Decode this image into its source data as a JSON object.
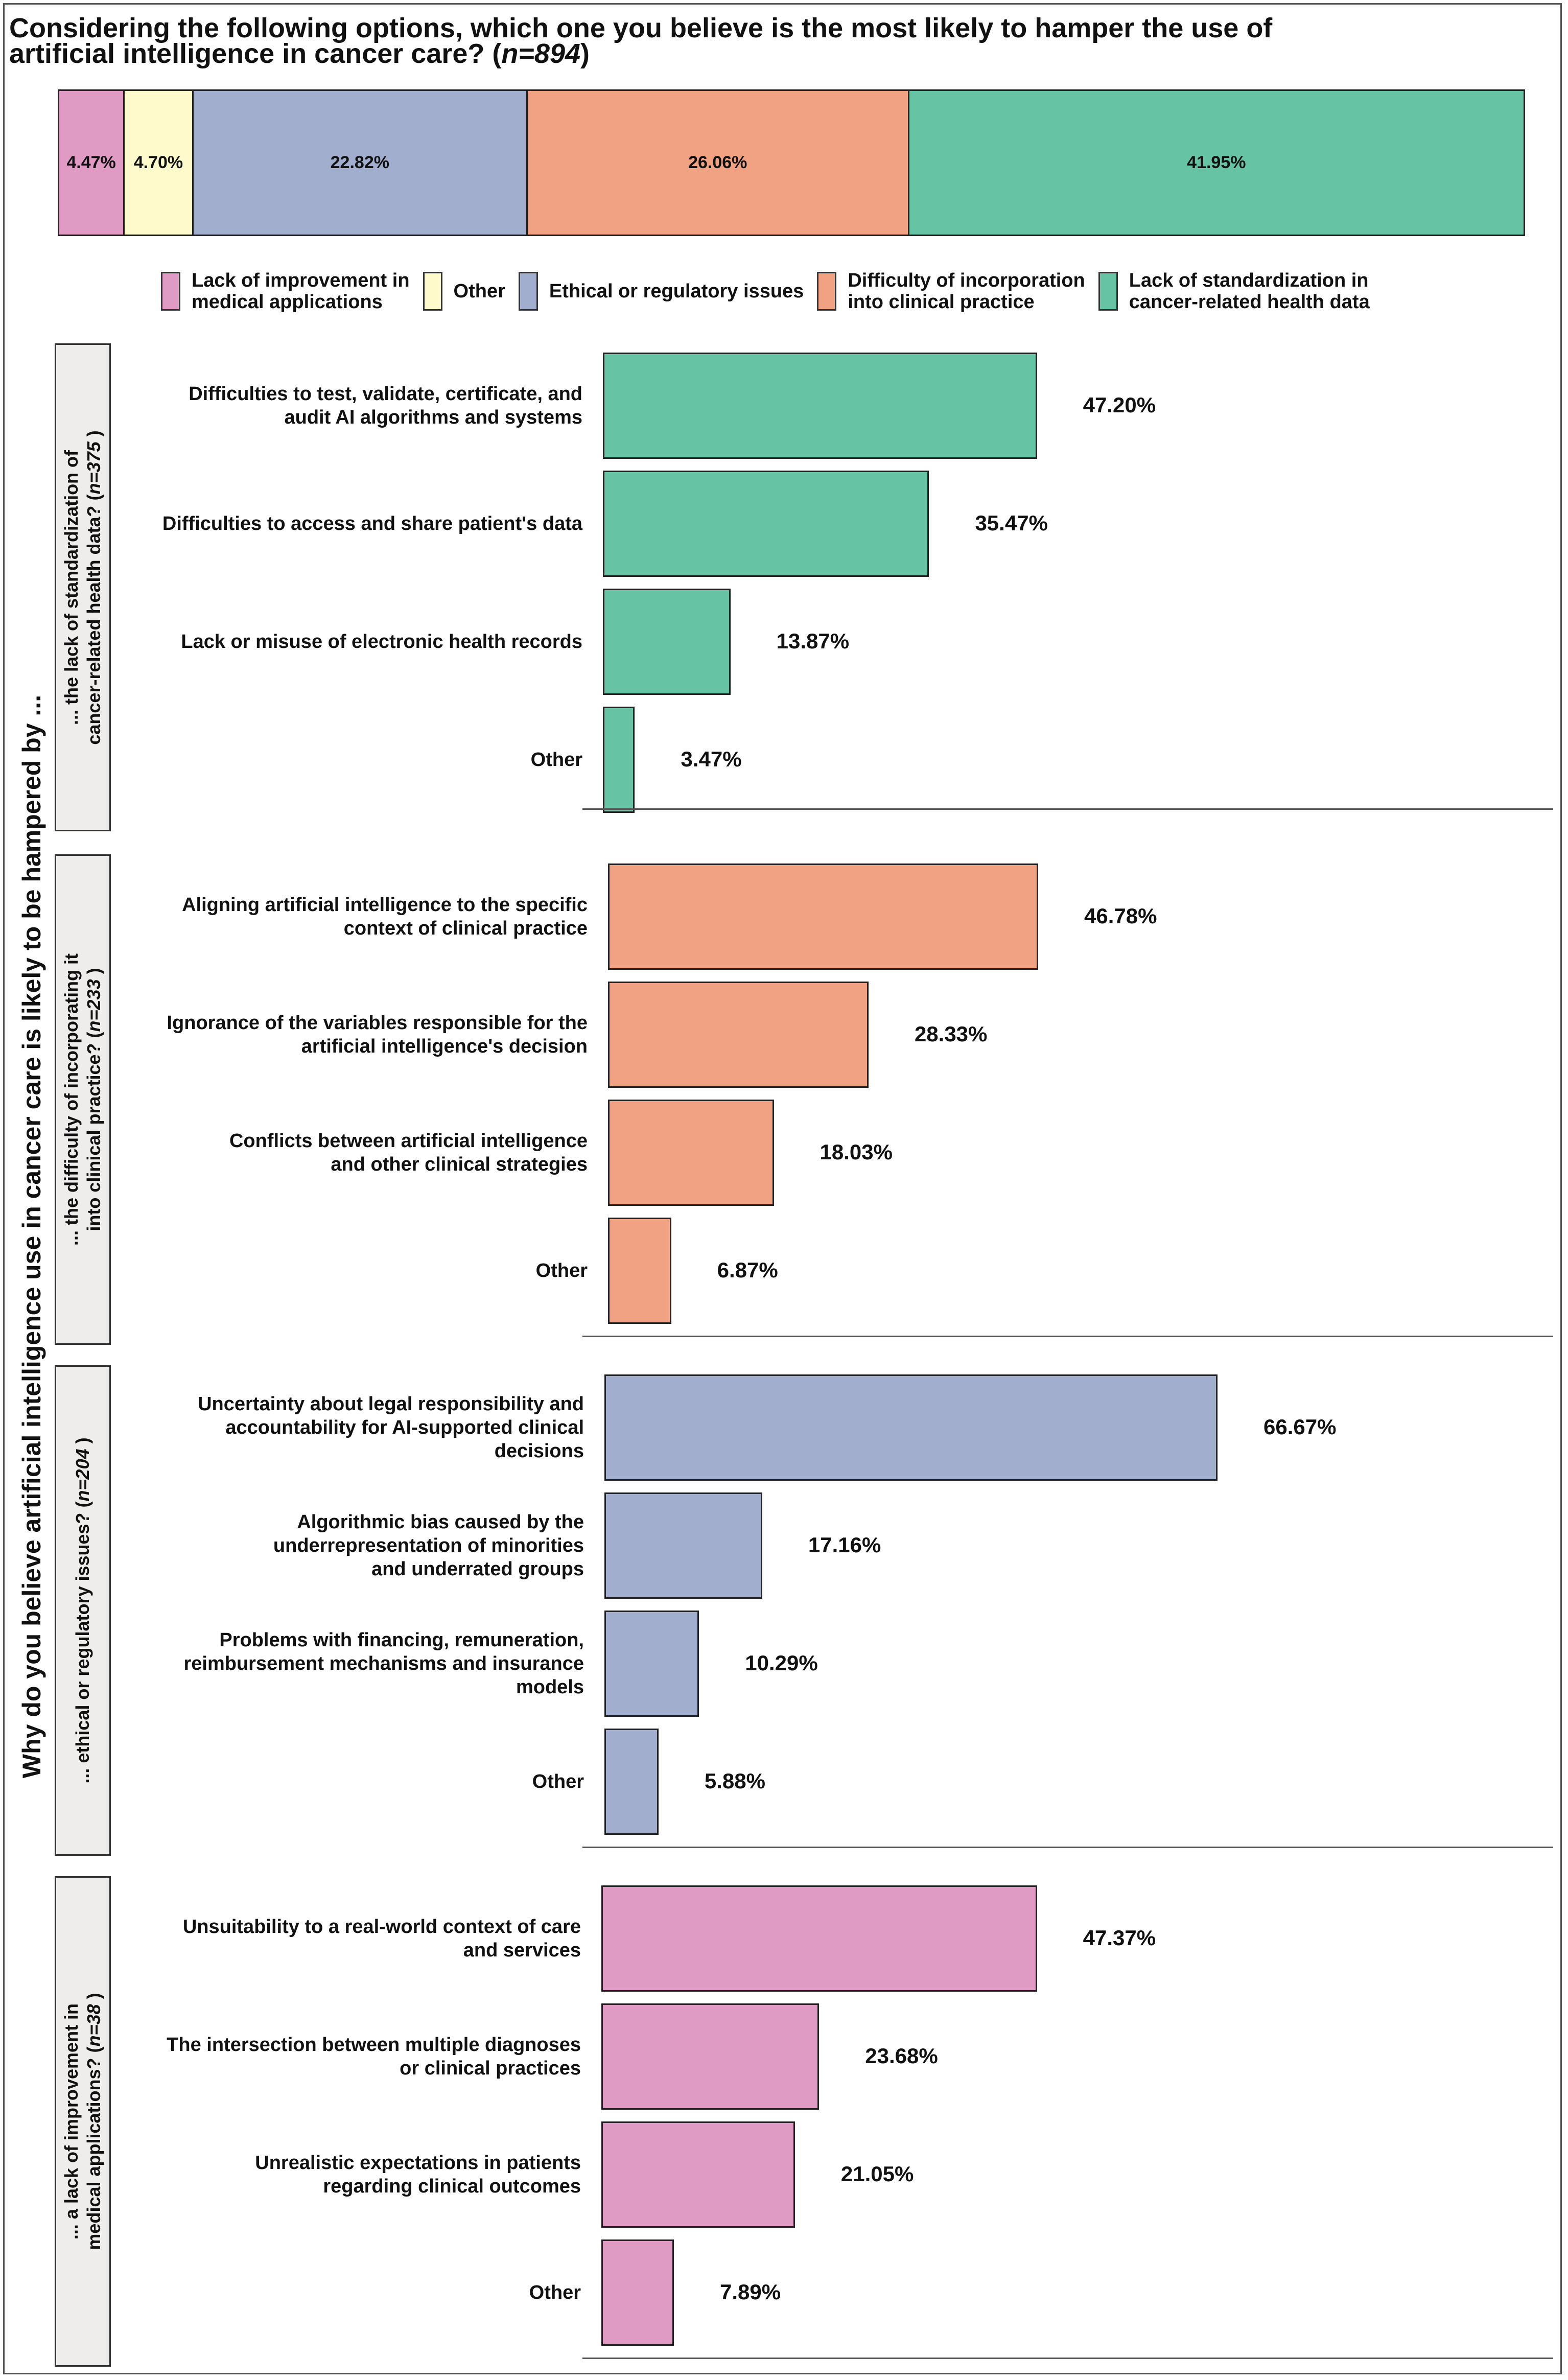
{
  "title": {
    "text": "Considering the following options, which one you believe is the most likely to hamper the use of\nartificial intelligence in cancer care? (",
    "n_text": "n=894",
    "close": ")"
  },
  "colors": {
    "lack_improvement": "#e09bc4",
    "other": "#fffacc",
    "ethical": "#a2aecd",
    "difficulty_incorporation": "#f0a283",
    "lack_standardization": "#66c3a4"
  },
  "chart_data": [
    {
      "type": "bar",
      "orientation": "horizontal-stacked",
      "title": "Considering the following options, which one you believe is the most likely to hamper the use of artificial intelligence in cancer care? (n=894)",
      "series": [
        {
          "name": "Lack of improvement in medical applications",
          "value": 4.47,
          "label": "4.47%",
          "color_key": "lack_improvement"
        },
        {
          "name": "Other",
          "value": 4.7,
          "label": "4.70%",
          "color_key": "other"
        },
        {
          "name": "Ethical or regulatory issues",
          "value": 22.82,
          "label": "22.82%",
          "color_key": "ethical"
        },
        {
          "name": "Difficulty of incorporation into clinical practice",
          "value": 26.06,
          "label": "26.06%",
          "color_key": "difficulty_incorporation"
        },
        {
          "name": "Lack of standardization in cancer-related health data",
          "value": 41.95,
          "label": "41.95%",
          "color_key": "lack_standardization"
        }
      ],
      "legend": [
        {
          "label": "Lack of improvement in\nmedical applications",
          "color_key": "lack_improvement"
        },
        {
          "label": "Other",
          "color_key": "other"
        },
        {
          "label": "Ethical or regulatory issues",
          "color_key": "ethical"
        },
        {
          "label": "Difficulty of incorporation\ninto clinical practice",
          "color_key": "difficulty_incorporation"
        },
        {
          "label": "Lack of standardization in\ncancer-related health data",
          "color_key": "lack_standardization"
        }
      ],
      "legend_position": "below"
    },
    {
      "type": "bar",
      "orientation": "horizontal",
      "facet_title": "Why do you believe artificial intelligence use in cancer care is likely to be hampered by ...",
      "xlim": [
        0,
        100
      ],
      "panels": [
        {
          "strip": "... the lack of standardization of\ncancer-related health data? (",
          "n_text": "n=375",
          "color_key": "lack_standardization",
          "categories": [
            "Difficulties to test, validate, certificate, and\naudit AI algorithms and systems",
            "Difficulties to access and share patient's data",
            "Lack or misuse of electronic health records",
            "Other"
          ],
          "values": [
            47.2,
            35.47,
            13.87,
            3.47
          ],
          "labels": [
            "47.20%",
            "35.47%",
            "13.87%",
            "3.47%"
          ]
        },
        {
          "strip": "... the difficulty of incorporating it\ninto clinical practice? (",
          "n_text": "n=233",
          "color_key": "difficulty_incorporation",
          "categories": [
            "Aligning artificial intelligence to the specific\ncontext of clinical practice",
            "Ignorance of the variables responsible for the\nartificial intelligence's decision",
            "Conflicts between artificial intelligence\nand other clinical strategies",
            "Other"
          ],
          "values": [
            46.78,
            28.33,
            18.03,
            6.87
          ],
          "labels": [
            "46.78%",
            "28.33%",
            "18.03%",
            "6.87%"
          ]
        },
        {
          "strip": "... ethical or regulatory issues? (",
          "n_text": "n=204",
          "color_key": "ethical",
          "categories": [
            "Uncertainty about legal responsibility and\naccountability for AI-supported clinical\ndecisions",
            "Algorithmic bias caused by the\nunderrepresentation of minorities\nand underrated groups",
            "Problems with financing, remuneration,\nreimbursement mechanisms and insurance\nmodels",
            "Other"
          ],
          "values": [
            66.67,
            17.16,
            10.29,
            5.88
          ],
          "labels": [
            "66.67%",
            "17.16%",
            "10.29%",
            "5.88%"
          ]
        },
        {
          "strip": "... a lack of improvement in\nmedical applications? (",
          "n_text": "n=38",
          "color_key": "lack_improvement",
          "categories": [
            "Unsuitability to a real-world context of care\nand services",
            "The intersection between multiple diagnoses\nor clinical practices",
            "Unrealistic expectations in patients\nregarding clinical outcomes",
            "Other"
          ],
          "values": [
            47.37,
            23.68,
            21.05,
            7.89
          ],
          "labels": [
            "47.37%",
            "23.68%",
            "21.05%",
            "7.89%"
          ]
        }
      ]
    }
  ]
}
